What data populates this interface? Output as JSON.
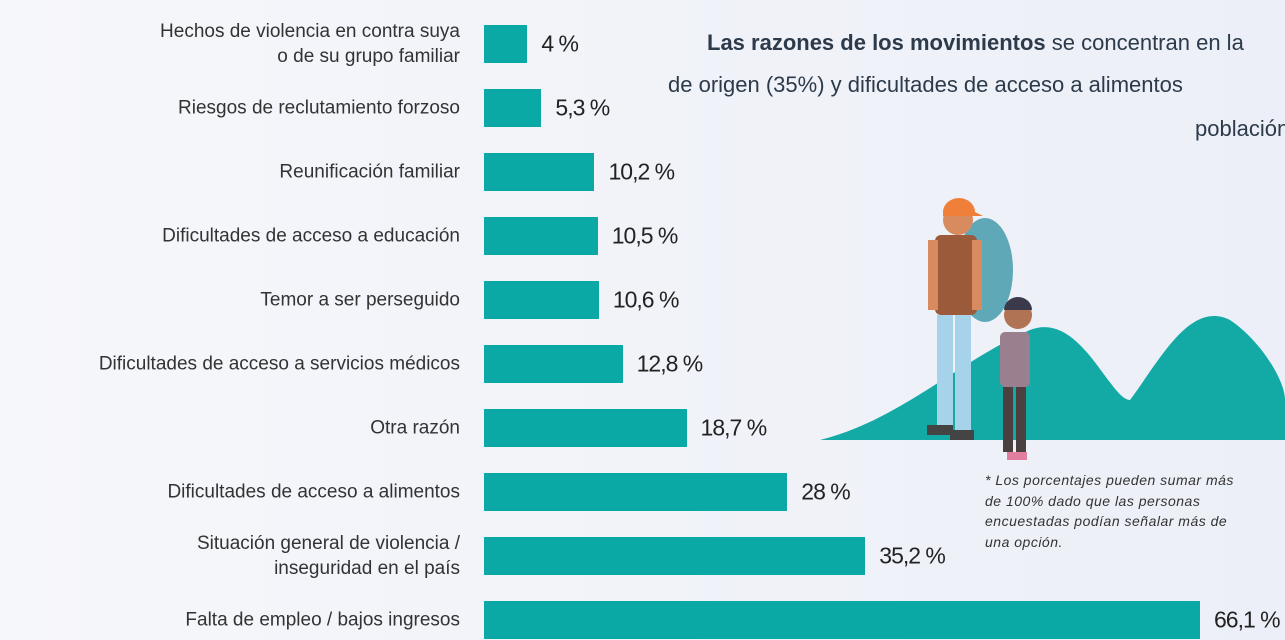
{
  "chart_data": {
    "type": "bar",
    "orientation": "horizontal",
    "color": "#0aa9a6",
    "categories": [
      "Hechos de violencia en contra suya\no de su grupo familiar",
      "Riesgos de reclutamiento forzoso",
      "Reunificación familiar",
      "Dificultades de acceso a educación",
      "Temor a ser perseguido",
      "Dificultades de acceso a servicios médicos",
      "Otra razón",
      "Dificultades de acceso a alimentos",
      "Situación general de violencia /\ninseguridad en el país",
      "Falta de empleo / bajos ingresos"
    ],
    "values": [
      4,
      5.3,
      10.2,
      10.5,
      10.6,
      12.8,
      18.7,
      28,
      35.2,
      66.1
    ],
    "value_labels": [
      "4 %",
      "5,3 %",
      "10,2 %",
      "10,5 %",
      "10,6 %",
      "12,8 %",
      "18,7 %",
      "28 %",
      "35,2 %",
      "66,1 %"
    ],
    "annotation": {
      "bold": "Las razones de los movimientos",
      "lines": [
        " se concentran en la",
        "de origen (35%) y dificultades de acceso a alimentos",
        "población"
      ]
    },
    "footnote": [
      "* Los porcentajes pueden sumar más",
      "de 100% dado que las personas",
      "encuestadas podían señalar más de",
      "una opción."
    ]
  }
}
